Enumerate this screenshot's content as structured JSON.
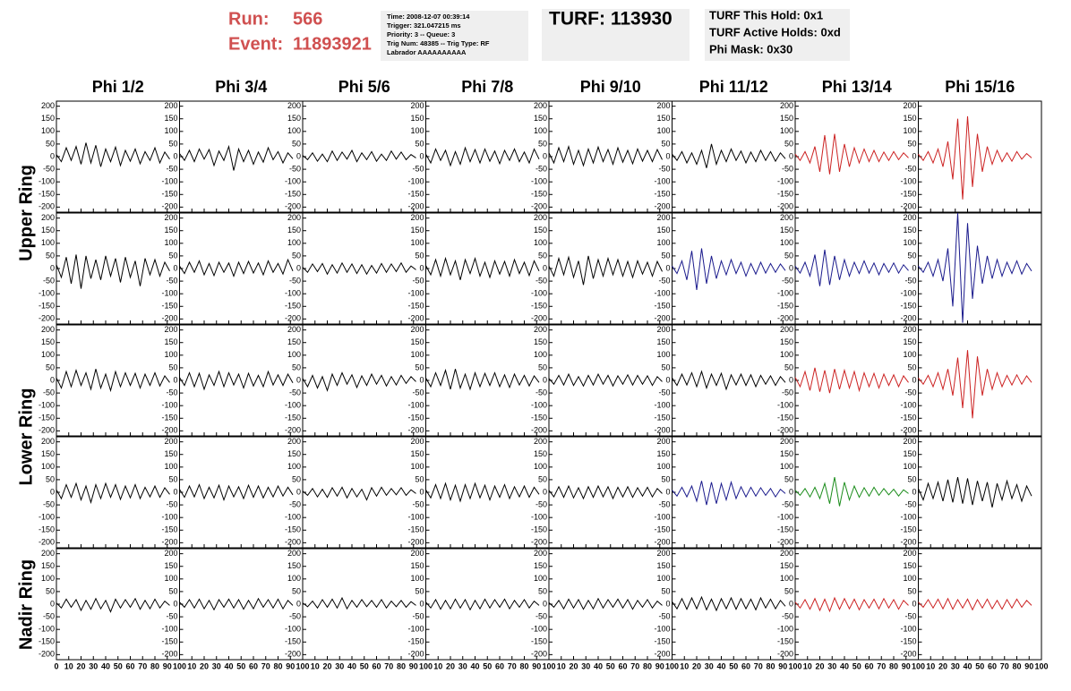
{
  "header": {
    "run_label": "Run:",
    "run": "566",
    "event_label": "Event:",
    "event": "11893921",
    "info": [
      "Time: 2008-12-07 00:39:14",
      "Trigger: 321.047215 ms",
      "Priority: 3 -- Queue: 3",
      "Trig Num: 48385 -- Trig Type: RF",
      "Labrador AAAAAAAAAA"
    ],
    "turf": "TURF: 113930",
    "turf_info": [
      "TURF This Hold: 0x1",
      "TURF Active Holds: 0xd",
      "Phi Mask: 0x30"
    ]
  },
  "chart_data": {
    "type": "line",
    "columns": [
      "Phi 1/2",
      "Phi 3/4",
      "Phi 5/6",
      "Phi 7/8",
      "Phi 9/10",
      "Phi 11/12",
      "Phi 13/14",
      "Phi 15/16"
    ],
    "rows": [
      "Upper Ring",
      "Lower Ring",
      "Nadir Ring"
    ],
    "x": [
      0,
      4,
      8,
      12,
      16,
      20,
      24,
      28,
      32,
      36,
      40,
      44,
      48,
      52,
      56,
      60,
      64,
      68,
      72,
      76,
      80,
      84,
      88,
      92
    ],
    "xlim": [
      0,
      100
    ],
    "ylim": [
      -220,
      220
    ],
    "xticks": [
      0,
      10,
      20,
      30,
      40,
      50,
      60,
      70,
      80,
      90,
      100
    ],
    "yticks": [
      -200,
      -150,
      -100,
      -50,
      0,
      50,
      100,
      150,
      200
    ],
    "panels": [
      {
        "color": "#000000",
        "values": [
          8,
          -20,
          35,
          -15,
          40,
          -30,
          55,
          -25,
          45,
          -40,
          30,
          -20,
          38,
          -35,
          25,
          -18,
          30,
          -28,
          20,
          -15,
          35,
          -25,
          18,
          -10
        ]
      },
      {
        "color": "#000000",
        "values": [
          12,
          -15,
          25,
          -20,
          30,
          -10,
          28,
          -35,
          22,
          -15,
          40,
          -55,
          30,
          -20,
          25,
          -30,
          18,
          -22,
          35,
          -12,
          20,
          -25,
          15,
          -8
        ]
      },
      {
        "color": "#000000",
        "values": [
          5,
          -12,
          15,
          -18,
          10,
          -20,
          22,
          -15,
          18,
          -10,
          25,
          -20,
          15,
          -12,
          20,
          -18,
          10,
          -15,
          22,
          -10,
          18,
          -12,
          8,
          -5
        ]
      },
      {
        "color": "#000000",
        "values": [
          10,
          -25,
          30,
          -15,
          25,
          -35,
          20,
          -30,
          35,
          -20,
          28,
          -25,
          30,
          -18,
          22,
          -28,
          25,
          -15,
          30,
          -20,
          18,
          -25,
          30,
          -10
        ]
      },
      {
        "color": "#000000",
        "values": [
          15,
          -25,
          35,
          -20,
          40,
          -30,
          25,
          -35,
          30,
          -25,
          38,
          -20,
          28,
          -30,
          35,
          -22,
          25,
          -28,
          30,
          -18,
          25,
          -20,
          28,
          -12
        ]
      },
      {
        "color": "#000000",
        "values": [
          10,
          -15,
          20,
          -25,
          15,
          -30,
          25,
          -45,
          50,
          -30,
          25,
          -20,
          30,
          -15,
          22,
          -25,
          18,
          -20,
          25,
          -15,
          20,
          -18,
          15,
          -8
        ]
      },
      {
        "color": "#cc2222",
        "values": [
          10,
          -15,
          20,
          -25,
          40,
          -60,
          85,
          -70,
          90,
          -60,
          50,
          -40,
          35,
          -25,
          30,
          -20,
          25,
          -20,
          18,
          -15,
          20,
          -12,
          15,
          -5
        ]
      },
      {
        "color": "#cc2222",
        "values": [
          10,
          -15,
          20,
          -25,
          30,
          -40,
          60,
          -90,
          150,
          -170,
          160,
          -120,
          90,
          -60,
          40,
          -30,
          25,
          -20,
          15,
          -18,
          20,
          -10,
          12,
          -5
        ]
      },
      {
        "color": "#000000",
        "values": [
          15,
          -35,
          45,
          -60,
          55,
          -80,
          50,
          -40,
          35,
          -45,
          50,
          -30,
          40,
          -55,
          45,
          -35,
          30,
          -70,
          40,
          -25,
          35,
          -30,
          25,
          -10
        ]
      },
      {
        "color": "#000000",
        "values": [
          10,
          -20,
          25,
          -15,
          30,
          -25,
          20,
          -28,
          25,
          -15,
          22,
          -30,
          25,
          -20,
          28,
          -18,
          22,
          -25,
          30,
          -15,
          20,
          -22,
          35,
          -10
        ]
      },
      {
        "color": "#000000",
        "values": [
          5,
          -15,
          18,
          -12,
          20,
          -22,
          15,
          -18,
          22,
          -15,
          18,
          -20,
          15,
          -22,
          12,
          -18,
          20,
          -15,
          18,
          -12,
          22,
          -15,
          10,
          -5
        ]
      },
      {
        "color": "#000000",
        "values": [
          12,
          -25,
          35,
          -30,
          40,
          -25,
          30,
          -45,
          35,
          -20,
          40,
          -30,
          25,
          -35,
          30,
          -22,
          28,
          -30,
          35,
          -20,
          25,
          -28,
          30,
          -10
        ]
      },
      {
        "color": "#000000",
        "values": [
          10,
          -30,
          40,
          -25,
          45,
          -35,
          30,
          -65,
          50,
          -40,
          35,
          -30,
          40,
          -25,
          35,
          -30,
          28,
          -35,
          30,
          -22,
          25,
          -30,
          28,
          -12
        ]
      },
      {
        "color": "#1a1a8c",
        "values": [
          10,
          -20,
          30,
          -45,
          70,
          -85,
          80,
          -60,
          50,
          -40,
          30,
          -25,
          35,
          -20,
          25,
          -30,
          20,
          -22,
          25,
          -18,
          20,
          -15,
          18,
          -8
        ]
      },
      {
        "color": "#1a1a8c",
        "values": [
          10,
          -18,
          25,
          -30,
          55,
          -70,
          75,
          -65,
          50,
          -45,
          35,
          -30,
          25,
          -20,
          30,
          -18,
          22,
          -25,
          20,
          -15,
          22,
          -18,
          15,
          -8
        ]
      },
      {
        "color": "#1a1a8c",
        "values": [
          10,
          -15,
          25,
          -30,
          35,
          -50,
          80,
          -150,
          220,
          -215,
          180,
          -120,
          90,
          -60,
          50,
          -40,
          35,
          -30,
          25,
          -20,
          30,
          -22,
          20,
          -10
        ]
      },
      {
        "color": "#000000",
        "values": [
          10,
          -30,
          35,
          -25,
          40,
          -20,
          30,
          -35,
          45,
          -30,
          25,
          -40,
          35,
          -25,
          30,
          -20,
          28,
          -30,
          25,
          -20,
          30,
          -22,
          18,
          -8
        ]
      },
      {
        "color": "#000000",
        "values": [
          12,
          -20,
          30,
          -25,
          28,
          -35,
          22,
          -20,
          35,
          -25,
          30,
          -18,
          25,
          -30,
          28,
          -22,
          20,
          -25,
          35,
          -18,
          22,
          -20,
          25,
          -10
        ]
      },
      {
        "color": "#000000",
        "values": [
          8,
          -25,
          20,
          -30,
          15,
          -40,
          25,
          -20,
          30,
          -15,
          22,
          -28,
          18,
          -20,
          25,
          -15,
          20,
          -22,
          15,
          -18,
          20,
          -12,
          15,
          -5
        ]
      },
      {
        "color": "#000000",
        "values": [
          10,
          -25,
          30,
          -20,
          40,
          -35,
          45,
          -30,
          25,
          -35,
          30,
          -25,
          28,
          -20,
          30,
          -25,
          22,
          -28,
          25,
          -18,
          20,
          -22,
          18,
          -8
        ]
      },
      {
        "color": "#000000",
        "values": [
          8,
          -15,
          20,
          -18,
          25,
          -20,
          15,
          -22,
          20,
          -18,
          25,
          -15,
          20,
          -22,
          18,
          -15,
          22,
          -18,
          20,
          -15,
          18,
          -20,
          15,
          -5
        ]
      },
      {
        "color": "#000000",
        "values": [
          10,
          -20,
          25,
          -18,
          30,
          -25,
          35,
          -30,
          25,
          -20,
          28,
          -35,
          22,
          -18,
          25,
          -20,
          22,
          -25,
          20,
          -15,
          18,
          -20,
          15,
          -8
        ]
      },
      {
        "color": "#cc2222",
        "values": [
          12,
          -25,
          35,
          -40,
          50,
          -45,
          40,
          -50,
          45,
          -35,
          40,
          -30,
          35,
          -40,
          30,
          -25,
          28,
          -30,
          25,
          -20,
          22,
          -25,
          18,
          -8
        ]
      },
      {
        "color": "#cc2222",
        "values": [
          10,
          -15,
          20,
          -25,
          30,
          -35,
          45,
          -60,
          90,
          -110,
          120,
          -150,
          95,
          -60,
          45,
          -35,
          30,
          -25,
          20,
          -18,
          22,
          -15,
          18,
          -8
        ]
      },
      {
        "color": "#000000",
        "values": [
          10,
          -25,
          30,
          -20,
          35,
          -30,
          25,
          -40,
          30,
          -25,
          35,
          -20,
          30,
          -28,
          25,
          -22,
          30,
          -25,
          20,
          -18,
          25,
          -20,
          18,
          -8
        ]
      },
      {
        "color": "#000000",
        "values": [
          12,
          -20,
          25,
          -18,
          30,
          -25,
          20,
          -22,
          28,
          -30,
          25,
          -18,
          22,
          -25,
          28,
          -20,
          25,
          -22,
          20,
          -18,
          25,
          -15,
          20,
          -10
        ]
      },
      {
        "color": "#000000",
        "values": [
          5,
          -12,
          15,
          -18,
          12,
          -20,
          18,
          -15,
          20,
          -22,
          15,
          -18,
          12,
          -30,
          18,
          -15,
          20,
          -12,
          15,
          -10,
          18,
          -12,
          10,
          -5
        ]
      },
      {
        "color": "#000000",
        "values": [
          10,
          -22,
          30,
          -25,
          35,
          -30,
          28,
          -35,
          30,
          -25,
          35,
          -22,
          28,
          -30,
          25,
          -20,
          30,
          -25,
          22,
          -18,
          25,
          -20,
          20,
          -8
        ]
      },
      {
        "color": "#000000",
        "values": [
          8,
          -18,
          22,
          -20,
          25,
          -22,
          18,
          -25,
          22,
          -20,
          25,
          -18,
          22,
          -25,
          20,
          -18,
          22,
          -20,
          18,
          -15,
          20,
          -18,
          15,
          -5
        ]
      },
      {
        "color": "#1a1a8c",
        "values": [
          8,
          -15,
          20,
          -18,
          25,
          -35,
          45,
          -50,
          40,
          -45,
          35,
          -30,
          40,
          -25,
          22,
          -18,
          20,
          -15,
          18,
          -12,
          15,
          -18,
          12,
          -5
        ]
      },
      {
        "color": "#1a8c1a",
        "values": [
          8,
          -12,
          15,
          -18,
          20,
          -25,
          35,
          -45,
          60,
          -55,
          40,
          -30,
          25,
          -20,
          18,
          -15,
          20,
          -12,
          15,
          -10,
          12,
          -15,
          10,
          -5
        ]
      },
      {
        "color": "#000000",
        "values": [
          15,
          -30,
          35,
          -25,
          40,
          -35,
          50,
          -40,
          60,
          -45,
          55,
          -50,
          45,
          -35,
          40,
          -60,
          35,
          -30,
          45,
          -25,
          30,
          -35,
          25,
          -15
        ]
      },
      {
        "color": "#000000",
        "values": [
          5,
          -15,
          20,
          -12,
          18,
          -25,
          15,
          -20,
          22,
          -18,
          15,
          -30,
          20,
          -15,
          18,
          -12,
          22,
          -20,
          15,
          -18,
          20,
          -15,
          12,
          -5
        ]
      },
      {
        "color": "#000000",
        "values": [
          8,
          -12,
          18,
          -15,
          20,
          -18,
          15,
          -22,
          18,
          -12,
          20,
          -15,
          18,
          -20,
          15,
          -18,
          22,
          -12,
          18,
          -15,
          20,
          -18,
          15,
          -5
        ]
      },
      {
        "color": "#000000",
        "values": [
          5,
          -10,
          12,
          -15,
          18,
          -12,
          20,
          -15,
          25,
          -18,
          15,
          -12,
          18,
          -10,
          15,
          -12,
          18,
          -15,
          12,
          -10,
          15,
          -12,
          10,
          -5
        ]
      },
      {
        "color": "#000000",
        "values": [
          8,
          -15,
          18,
          -20,
          15,
          -18,
          20,
          -15,
          18,
          -22,
          15,
          -18,
          20,
          -15,
          18,
          -12,
          20,
          -18,
          15,
          -12,
          18,
          -15,
          12,
          -5
        ]
      },
      {
        "color": "#000000",
        "values": [
          6,
          -12,
          15,
          -18,
          20,
          -15,
          18,
          -20,
          15,
          -18,
          22,
          -15,
          18,
          -12,
          20,
          -15,
          18,
          -20,
          15,
          -12,
          18,
          -15,
          12,
          -5
        ]
      },
      {
        "color": "#000000",
        "values": [
          10,
          -18,
          22,
          -20,
          25,
          -18,
          28,
          -22,
          20,
          -25,
          22,
          -18,
          25,
          -20,
          22,
          -18,
          20,
          -22,
          25,
          -15,
          20,
          -18,
          15,
          -8
        ]
      },
      {
        "color": "#cc2222",
        "values": [
          8,
          -15,
          18,
          -20,
          22,
          -25,
          20,
          -28,
          25,
          -20,
          22,
          -18,
          20,
          -22,
          18,
          -15,
          20,
          -18,
          22,
          -15,
          18,
          -20,
          15,
          -5
        ]
      },
      {
        "color": "#cc2222",
        "values": [
          8,
          -12,
          18,
          -15,
          20,
          -18,
          22,
          -20,
          18,
          -15,
          20,
          -22,
          18,
          -15,
          20,
          -18,
          15,
          -20,
          18,
          -15,
          20,
          -12,
          15,
          -5
        ]
      }
    ]
  }
}
